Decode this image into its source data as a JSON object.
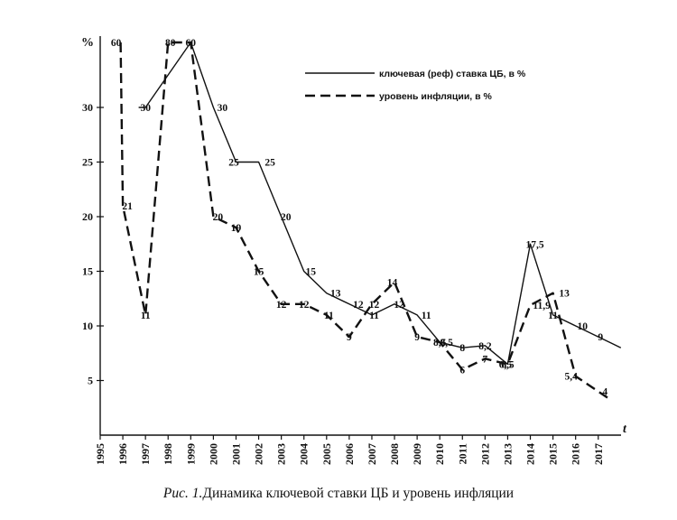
{
  "chart_data": {
    "type": "line",
    "ylabel": "%",
    "xlabel": "t",
    "yticks": [
      "5",
      "10",
      "15",
      "20",
      "25",
      "30"
    ],
    "x": [
      "1995",
      "1996",
      "1997",
      "1998",
      "1999",
      "2000",
      "2001",
      "2002",
      "2003",
      "2004",
      "2005",
      "2006",
      "2007",
      "2008",
      "2009",
      "2010",
      "2011",
      "2012",
      "2013",
      "2014",
      "2015",
      "2016",
      "2017"
    ],
    "series": [
      {
        "name": "ключевая (реф) ставка ЦБ, в %",
        "style": "solid",
        "points": [
          {
            "x": 1996.7,
            "y": 30
          },
          {
            "x": 1997.0,
            "y": 30
          },
          {
            "x": 1999.0,
            "y": 60
          },
          {
            "x": 2000.0,
            "y": 30
          },
          {
            "x": 2001.0,
            "y": 25
          },
          {
            "x": 2002.0,
            "y": 25
          },
          {
            "x": 2003.0,
            "y": 20
          },
          {
            "x": 2004.0,
            "y": 15
          },
          {
            "x": 2005.0,
            "y": 13
          },
          {
            "x": 2006.0,
            "y": 12
          },
          {
            "x": 2007.0,
            "y": 11
          },
          {
            "x": 2008.0,
            "y": 12
          },
          {
            "x": 2009.0,
            "y": 11
          },
          {
            "x": 2010.0,
            "y": 8.5
          },
          {
            "x": 2011.0,
            "y": 8
          },
          {
            "x": 2012.0,
            "y": 8.2
          },
          {
            "x": 2013.0,
            "y": 6.5
          },
          {
            "x": 2014.0,
            "y": 17.5
          },
          {
            "x": 2015.0,
            "y": 11
          },
          {
            "x": 2016.0,
            "y": 10
          },
          {
            "x": 2017.0,
            "y": 9
          },
          {
            "x": 2018.0,
            "y": 8
          }
        ]
      },
      {
        "name": "уровень инфляции, в %",
        "style": "dashed",
        "points": [
          {
            "x": 1995.9,
            "y": 60
          },
          {
            "x": 1996.0,
            "y": 21
          },
          {
            "x": 1997.0,
            "y": 11
          },
          {
            "x": 1998.0,
            "y": 80
          },
          {
            "x": 1999.0,
            "y": 60
          },
          {
            "x": 2000.0,
            "y": 20
          },
          {
            "x": 2001.0,
            "y": 19
          },
          {
            "x": 2002.0,
            "y": 15
          },
          {
            "x": 2003.0,
            "y": 12
          },
          {
            "x": 2004.0,
            "y": 12
          },
          {
            "x": 2005.0,
            "y": 11
          },
          {
            "x": 2006.0,
            "y": 9
          },
          {
            "x": 2007.0,
            "y": 12
          },
          {
            "x": 2008.0,
            "y": 14
          },
          {
            "x": 2009.0,
            "y": 9
          },
          {
            "x": 2010.0,
            "y": 8.5
          },
          {
            "x": 2011.0,
            "y": 6
          },
          {
            "x": 2012.0,
            "y": 7
          },
          {
            "x": 2013.0,
            "y": 6.5
          },
          {
            "x": 2014.0,
            "y": 11.9
          },
          {
            "x": 2015.0,
            "y": 13
          },
          {
            "x": 2016.0,
            "y": 5.4
          },
          {
            "x": 2017.0,
            "y": 4
          },
          {
            "x": 2017.5,
            "y": 3.3
          }
        ]
      }
    ],
    "data_labels": [
      {
        "text": "60",
        "x": 1995.7,
        "y": 60
      },
      {
        "text": "30",
        "x": 1997.0,
        "y": 30
      },
      {
        "text": "80",
        "x": 1998.1,
        "y": 80
      },
      {
        "text": "60",
        "x": 1999.0,
        "y": 60
      },
      {
        "text": "21",
        "x": 1996.2,
        "y": 21
      },
      {
        "text": "11",
        "x": 1997.0,
        "y": 11
      },
      {
        "text": "30",
        "x": 2000.4,
        "y": 30
      },
      {
        "text": "25",
        "x": 2000.9,
        "y": 25
      },
      {
        "text": "25",
        "x": 2002.5,
        "y": 25
      },
      {
        "text": "20",
        "x": 2003.2,
        "y": 20
      },
      {
        "text": "15",
        "x": 2004.3,
        "y": 15
      },
      {
        "text": "20",
        "x": 2000.2,
        "y": 20
      },
      {
        "text": "19",
        "x": 2001.0,
        "y": 19
      },
      {
        "text": "15",
        "x": 2002.0,
        "y": 15
      },
      {
        "text": "12",
        "x": 2003.0,
        "y": 12
      },
      {
        "text": "12",
        "x": 2004.0,
        "y": 12
      },
      {
        "text": "13",
        "x": 2005.4,
        "y": 13
      },
      {
        "text": "12",
        "x": 2006.4,
        "y": 12
      },
      {
        "text": "11",
        "x": 2005.1,
        "y": 11
      },
      {
        "text": "9",
        "x": 2006.0,
        "y": 9
      },
      {
        "text": "11",
        "x": 2007.1,
        "y": 11
      },
      {
        "text": "12",
        "x": 2007.1,
        "y": 12
      },
      {
        "text": "14",
        "x": 2007.9,
        "y": 14
      },
      {
        "text": "12",
        "x": 2008.2,
        "y": 12
      },
      {
        "text": "11",
        "x": 2009.4,
        "y": 11
      },
      {
        "text": "9",
        "x": 2009.0,
        "y": 9
      },
      {
        "text": "8,5",
        "x": 2010.3,
        "y": 8.5
      },
      {
        "text": "8,5",
        "x": 2010.0,
        "y": 8.5
      },
      {
        "text": "8",
        "x": 2011.0,
        "y": 8
      },
      {
        "text": "8,2",
        "x": 2012.0,
        "y": 8.2
      },
      {
        "text": "6",
        "x": 2011.0,
        "y": 6
      },
      {
        "text": "7",
        "x": 2012.0,
        "y": 7
      },
      {
        "text": "6,5",
        "x": 2012.9,
        "y": 6.5
      },
      {
        "text": "6,5",
        "x": 2013.0,
        "y": 6.5
      },
      {
        "text": "17,5",
        "x": 2014.2,
        "y": 17.5
      },
      {
        "text": "11,9",
        "x": 2014.5,
        "y": 11.9
      },
      {
        "text": "13",
        "x": 2015.5,
        "y": 13
      },
      {
        "text": "11",
        "x": 2015.0,
        "y": 11
      },
      {
        "text": "10",
        "x": 2016.3,
        "y": 10
      },
      {
        "text": "9",
        "x": 2017.1,
        "y": 9
      },
      {
        "text": "5,4",
        "x": 2015.8,
        "y": 5.4
      },
      {
        "text": "4",
        "x": 2017.3,
        "y": 4
      }
    ],
    "legend_position": "top-right"
  },
  "caption": {
    "prefix": "Рис. 1.",
    "text": "Динамика ключевой ставки ЦБ и уровень инфляции"
  }
}
